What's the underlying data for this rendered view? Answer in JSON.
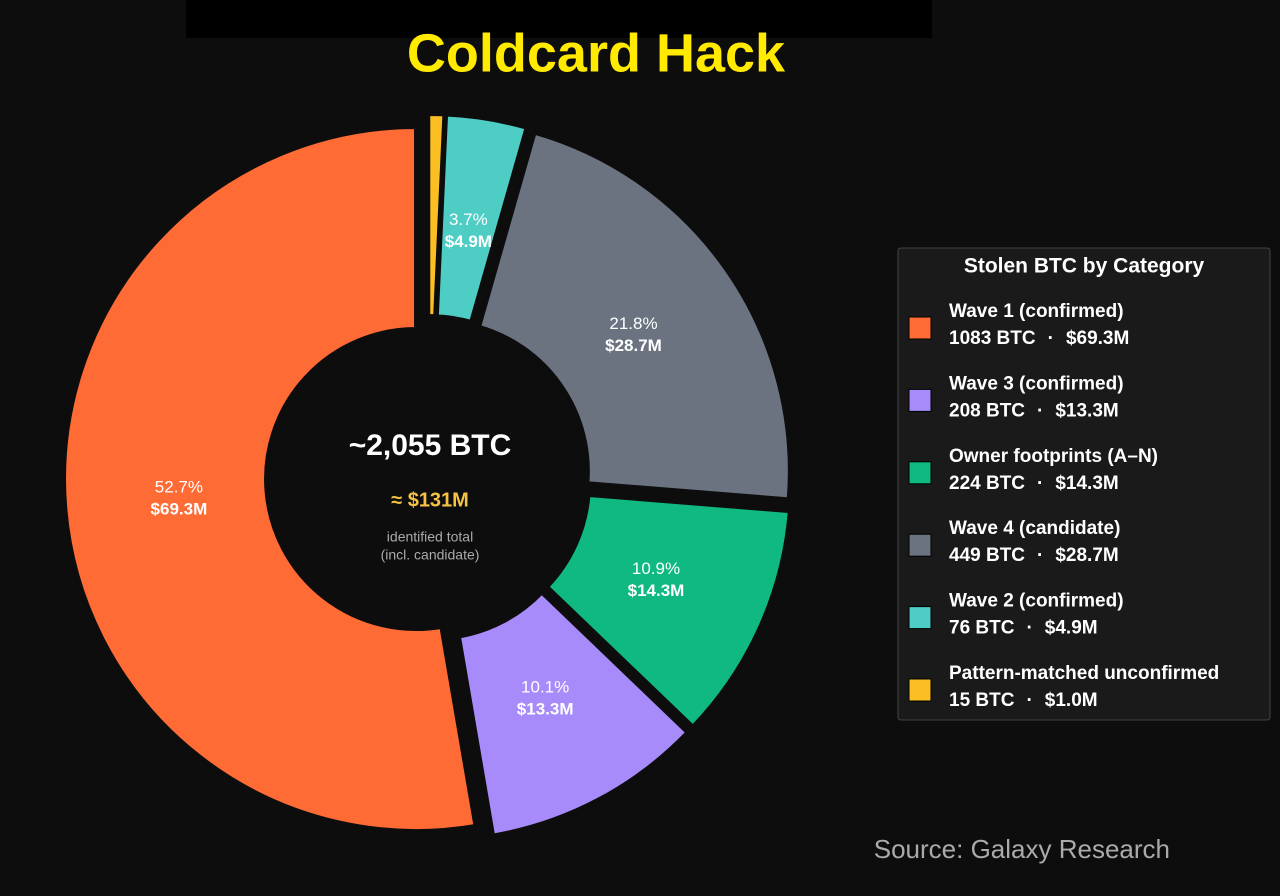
{
  "chart_data": {
    "type": "donut",
    "title": "Coldcard Hack",
    "categories": [
      "Wave 1 (confirmed)",
      "Wave 3 (confirmed)",
      "Owner footprints (A–N)",
      "Wave 4 (candidate)",
      "Wave 2 (confirmed)",
      "Pattern-matched unconfirmed"
    ],
    "values": [
      1083,
      208,
      224,
      449,
      76,
      15
    ],
    "value_labels": [
      "1083 BTC",
      "208 BTC",
      "224 BTC",
      "449 BTC",
      "76 BTC",
      "15 BTC"
    ],
    "usd": [
      69.3,
      13.3,
      14.3,
      28.7,
      4.9,
      1.0
    ],
    "usd_labels": [
      "$69.3M",
      "$13.3M",
      "$14.3M",
      "$28.7M",
      "$4.9M",
      "$1.0M"
    ],
    "percent": [
      52.7,
      10.1,
      10.9,
      21.8,
      3.7,
      null
    ],
    "percent_labels": [
      "52.7%",
      "10.1%",
      "10.9%",
      "21.8%",
      "3.7%",
      null
    ],
    "separator": "·",
    "colors": [
      "#ff6b35",
      "#a78bfa",
      "#10b981",
      "#6b7280",
      "#4ecdc4",
      "#fbbf24"
    ],
    "center": {
      "total": "~2,055 BTC",
      "usd": "≈ $131M",
      "note_1": "identified total",
      "note_2": "(incl. candidate)"
    },
    "legend_title": "Stolen BTC by Category",
    "legend": "right",
    "source": "Source: Galaxy Research"
  }
}
